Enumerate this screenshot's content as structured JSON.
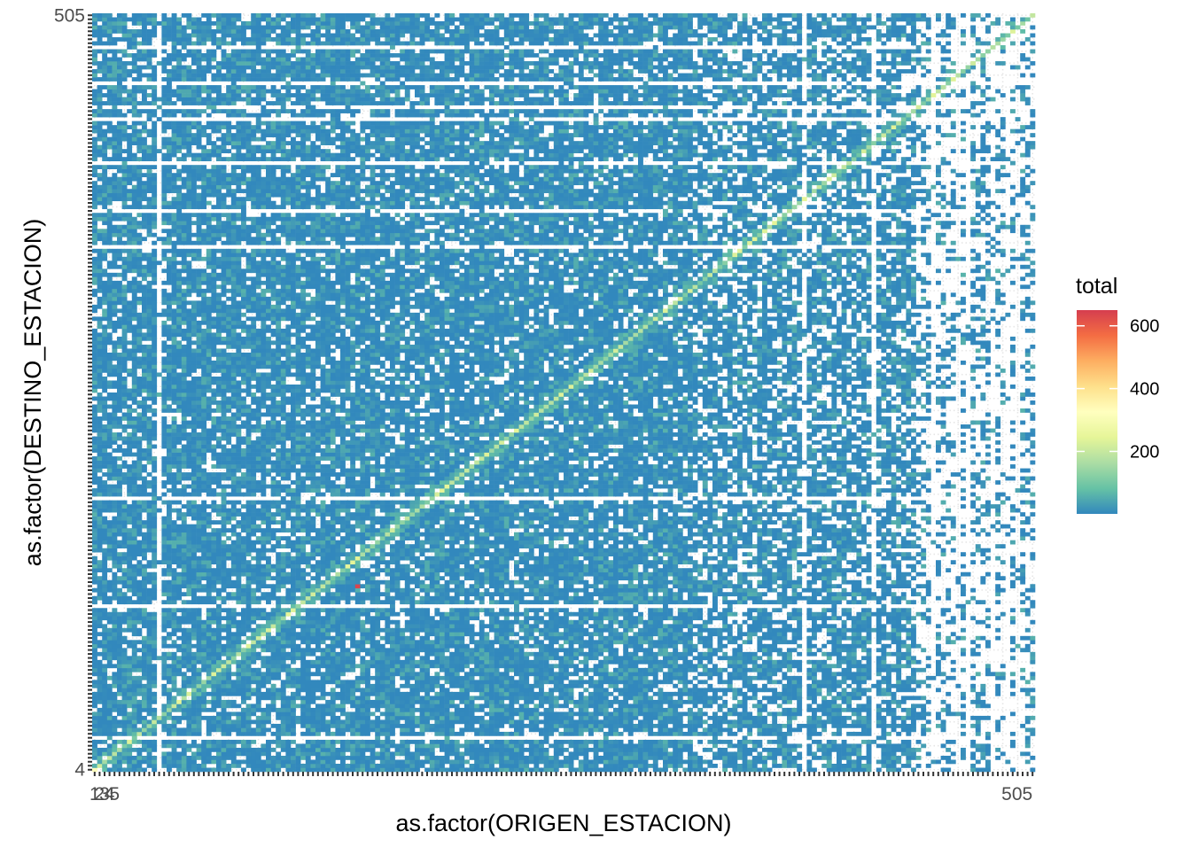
{
  "chart_data": {
    "type": "heatmap",
    "title": "",
    "xlabel": "as.factor(ORIGEN_ESTACION)",
    "ylabel": "as.factor(DESTINO_ESTACION)",
    "x_tick_labels_visible": [
      "1",
      "2",
      "3",
      "4",
      "5",
      "505"
    ],
    "y_tick_labels_visible": [
      "4",
      "505"
    ],
    "n_categories_x": 190,
    "n_categories_y": 190,
    "x_range": [
      1,
      505
    ],
    "y_range": [
      1,
      505
    ],
    "legend": {
      "title": "total",
      "position": "right",
      "breaks": [
        200,
        400,
        600
      ],
      "break_labels": [
        "200",
        "400",
        "600"
      ],
      "limits": [
        1,
        650
      ],
      "palette": "Spectral (reversed)",
      "colors": [
        "#3288bd",
        "#66c2a5",
        "#abdda4",
        "#e6f598",
        "#ffffbf",
        "#fee08b",
        "#fdae61",
        "#f46d43",
        "#d53e4f"
      ]
    },
    "value_summary": {
      "typical_off_diagonal": "low (blue)",
      "diagonal": "higher (green/yellow)",
      "max_cell": {
        "origin_index": 105,
        "destination_index": 75,
        "value": 640
      }
    },
    "missing_color": "#ffffff",
    "panel_grid": "dotted light grey",
    "grid": true
  }
}
